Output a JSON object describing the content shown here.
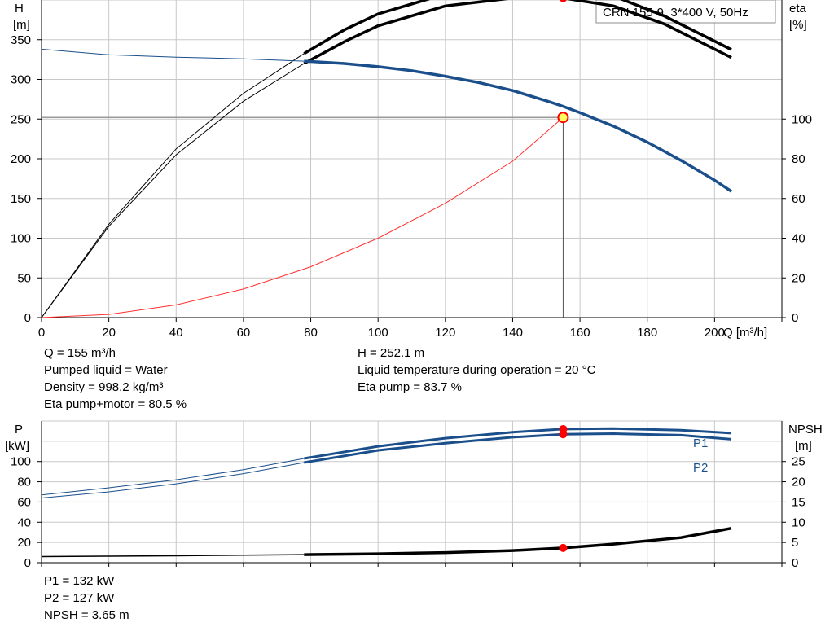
{
  "chart_data": [
    {
      "type": "line",
      "pump_label": "CRN 155-9, 3*400 V, 50Hz",
      "y_axis_label": "H",
      "y_axis_unit": "[m]",
      "y2_axis_label": "eta",
      "y2_axis_unit": "[%]",
      "x_axis_label": "Q [m³/h]",
      "x_ticks": [
        0,
        20,
        40,
        60,
        80,
        100,
        120,
        140,
        160,
        180,
        200
      ],
      "y_ticks": [
        0,
        50,
        100,
        150,
        200,
        250,
        300,
        350
      ],
      "y2_ticks": [
        0,
        20,
        40,
        60,
        80,
        100
      ],
      "xlim": [
        0,
        220
      ],
      "ylim": [
        0,
        400
      ],
      "y2lim": [
        0,
        160
      ],
      "grid": true,
      "colors": {
        "head": "#1a4f8b",
        "system": "#ff3030",
        "eta": "#000000",
        "marker": "#ff0000",
        "duty_marker_fill": "#ffff60"
      },
      "series": [
        {
          "key": "head",
          "points": [
            [
              0,
              338
            ],
            [
              20,
              331
            ],
            [
              40,
              328
            ],
            [
              60,
              326
            ],
            [
              78,
              323
            ],
            [
              90,
              320
            ],
            [
              100,
              316
            ],
            [
              110,
              311
            ],
            [
              120,
              304
            ],
            [
              130,
              296
            ],
            [
              140,
              286
            ],
            [
              150,
              273
            ],
            [
              155,
              266
            ],
            [
              160,
              258
            ],
            [
              170,
              241
            ],
            [
              180,
              221
            ],
            [
              190,
              198
            ],
            [
              200,
              173
            ],
            [
              205,
              159
            ]
          ]
        },
        {
          "key": "eta_pump",
          "points": [
            [
              0,
              0
            ],
            [
              20,
              47
            ],
            [
              40,
              85
            ],
            [
              60,
              113
            ],
            [
              78,
              133
            ],
            [
              90,
              145
            ],
            [
              100,
              153
            ],
            [
              120,
              163
            ],
            [
              140,
              167
            ],
            [
              155,
              167
            ],
            [
              170,
              162
            ],
            [
              185,
              152
            ],
            [
              205,
              135
            ]
          ]
        },
        {
          "key": "eta_pump_motor",
          "points": [
            [
              0,
              0
            ],
            [
              20,
              46
            ],
            [
              40,
              82
            ],
            [
              60,
              109
            ],
            [
              78,
              128
            ],
            [
              90,
              139
            ],
            [
              100,
              147
            ],
            [
              120,
              157
            ],
            [
              140,
              161
            ],
            [
              155,
              161
            ],
            [
              170,
              157
            ],
            [
              185,
              148
            ],
            [
              205,
              131
            ]
          ]
        },
        {
          "key": "system_curve",
          "points": [
            [
              0,
              0
            ],
            [
              20,
              4
            ],
            [
              40,
              16
            ],
            [
              60,
              36
            ],
            [
              80,
              64
            ],
            [
              100,
              100
            ],
            [
              120,
              144
            ],
            [
              140,
              197
            ],
            [
              155,
              252
            ]
          ]
        }
      ],
      "duty_point": {
        "q": 155,
        "h": 252.1
      },
      "eta_points": [
        83.7,
        80.5
      ]
    },
    {
      "type": "line",
      "y_axis_label": "P",
      "y_axis_unit": "[kW]",
      "y2_axis_label": "NPSH",
      "y2_axis_unit": "[m]",
      "y_ticks": [
        0,
        20,
        40,
        60,
        80,
        100
      ],
      "y2_ticks": [
        0,
        5,
        10,
        15,
        20,
        25
      ],
      "xlim": [
        0,
        220
      ],
      "ylim": [
        0,
        140
      ],
      "y2lim": [
        0,
        35
      ],
      "grid": true,
      "series": [
        {
          "name": "P1",
          "points": [
            [
              0,
              67
            ],
            [
              20,
              74
            ],
            [
              40,
              82
            ],
            [
              60,
              92
            ],
            [
              78,
              103
            ],
            [
              100,
              115
            ],
            [
              120,
              123
            ],
            [
              140,
              129
            ],
            [
              155,
              132
            ],
            [
              170,
              132.5
            ],
            [
              190,
              131
            ],
            [
              205,
              128
            ]
          ]
        },
        {
          "name": "P2",
          "points": [
            [
              0,
              64
            ],
            [
              20,
              70
            ],
            [
              40,
              78
            ],
            [
              60,
              88
            ],
            [
              78,
              99
            ],
            [
              100,
              111
            ],
            [
              120,
              118
            ],
            [
              140,
              124
            ],
            [
              155,
              127
            ],
            [
              170,
              127.5
            ],
            [
              190,
              126
            ],
            [
              205,
              122
            ]
          ]
        },
        {
          "key": "npsh",
          "points": [
            [
              0,
              1.5
            ],
            [
              20,
              1.6
            ],
            [
              40,
              1.7
            ],
            [
              60,
              1.85
            ],
            [
              78,
              2.0
            ],
            [
              100,
              2.2
            ],
            [
              120,
              2.5
            ],
            [
              140,
              3.0
            ],
            [
              155,
              3.65
            ],
            [
              170,
              4.6
            ],
            [
              190,
              6.2
            ],
            [
              205,
              8.5
            ]
          ]
        }
      ],
      "duty_values": {
        "P1": 132,
        "P2": 127,
        "NPSH": 3.65
      }
    }
  ],
  "info_top_left": [
    "Q = 155 m³/h",
    "Pumped liquid = Water",
    "Density = 998.2 kg/m³",
    "Eta pump+motor = 80.5 %"
  ],
  "info_top_right": [
    "H = 252.1 m",
    "Liquid temperature during operation = 20 °C",
    "Eta pump = 83.7 %"
  ],
  "info_bottom": [
    "P1 = 132 kW",
    "P2 = 127 kW",
    "NPSH = 3.65 m"
  ]
}
